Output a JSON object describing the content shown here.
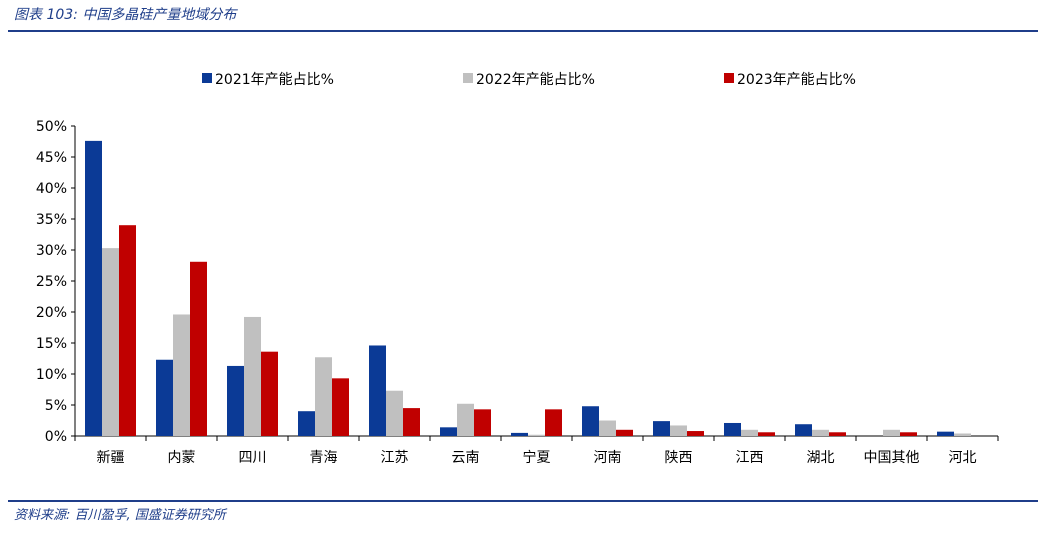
{
  "header": {
    "title": "图表 103:  中国多晶硅产量地域分布"
  },
  "footer": {
    "source": "资料来源:  百川盈孚,  国盛证券研究所"
  },
  "colors": {
    "accent": "#1f3e8a",
    "series_2021": "#0b3a96",
    "series_2022": "#c0c0c0",
    "series_2023": "#c00000"
  },
  "chart_data": {
    "type": "bar",
    "categories": [
      "新疆",
      "内蒙",
      "四川",
      "青海",
      "江苏",
      "云南",
      "宁夏",
      "河南",
      "陕西",
      "江西",
      "湖北",
      "中国其他",
      "河北"
    ],
    "series": [
      {
        "name": "2021年产能占比%",
        "color": "#0b3a96",
        "values": [
          47.6,
          12.3,
          11.3,
          4.0,
          14.6,
          1.4,
          0.5,
          4.8,
          2.4,
          2.1,
          1.9,
          0.0,
          0.7
        ]
      },
      {
        "name": "2022年产能占比%",
        "color": "#c0c0c0",
        "values": [
          30.3,
          19.6,
          19.2,
          12.7,
          7.3,
          5.2,
          0.2,
          2.5,
          1.7,
          1.0,
          1.0,
          1.0,
          0.4
        ]
      },
      {
        "name": "2023年产能占比%",
        "color": "#c00000",
        "values": [
          34.0,
          28.1,
          13.6,
          9.3,
          4.5,
          4.3,
          4.3,
          1.0,
          0.8,
          0.6,
          0.6,
          0.6,
          0.0
        ]
      }
    ],
    "yticks": [
      "0%",
      "5%",
      "10%",
      "15%",
      "20%",
      "25%",
      "30%",
      "35%",
      "40%",
      "45%",
      "50%"
    ],
    "ylim": [
      0,
      50
    ],
    "grid": false,
    "legend_position": "top"
  }
}
